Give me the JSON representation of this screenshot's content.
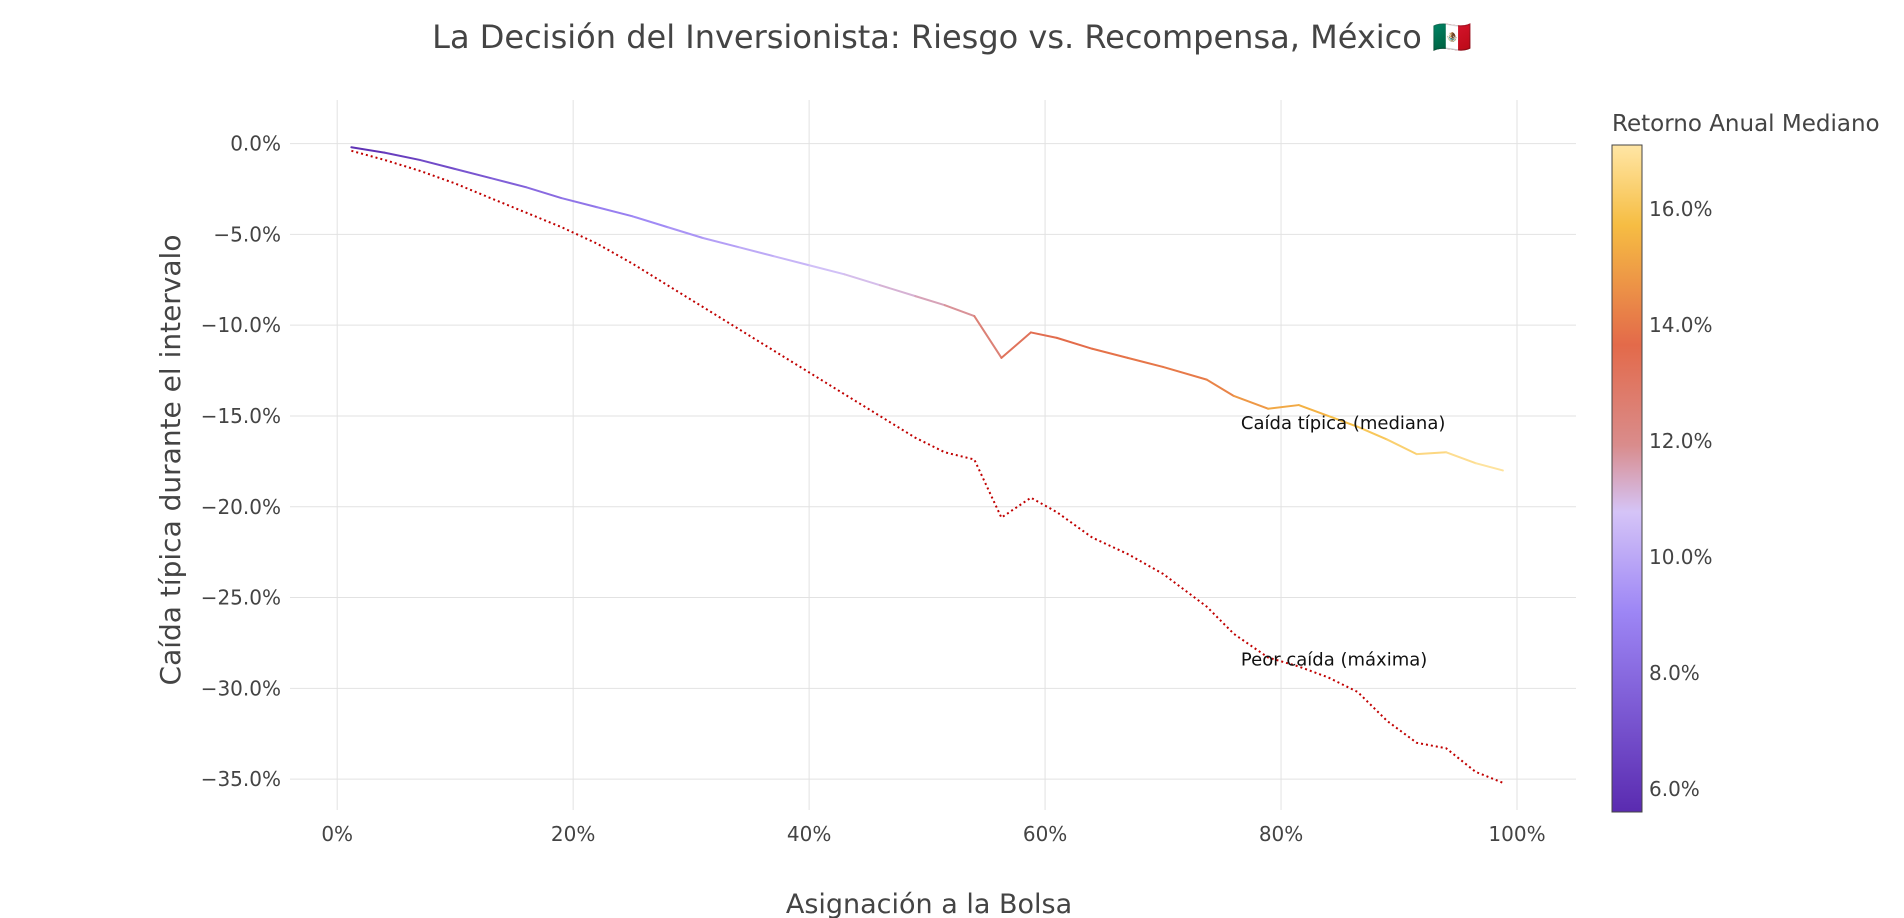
{
  "chart_data": {
    "type": "line",
    "title": "La Decisión del Inversionista: Riesgo vs. Recompensa, México 🇲🇽",
    "xlabel": "Asignación a la Bolsa",
    "ylabel": "Caída típica durante el intervalo",
    "xlim": [
      -0.04,
      1.05
    ],
    "ylim": [
      -36.7,
      2.4
    ],
    "x_ticks": [
      {
        "value": 0,
        "label": "0%"
      },
      {
        "value": 0.2,
        "label": "20%"
      },
      {
        "value": 0.4,
        "label": "40%"
      },
      {
        "value": 0.6,
        "label": "60%"
      },
      {
        "value": 0.8,
        "label": "80%"
      },
      {
        "value": 1.0,
        "label": "100%"
      }
    ],
    "y_ticks": [
      {
        "value": 0,
        "label": "0.0%"
      },
      {
        "value": -5,
        "label": "−5.0%"
      },
      {
        "value": -10,
        "label": "−10.0%"
      },
      {
        "value": -15,
        "label": "−15.0%"
      },
      {
        "value": -20,
        "label": "−20.0%"
      },
      {
        "value": -25,
        "label": "−25.0%"
      },
      {
        "value": -30,
        "label": "−30.0%"
      },
      {
        "value": -35,
        "label": "−35.0%"
      }
    ],
    "grid": true,
    "series": [
      {
        "key": "median",
        "style": "solid-colorscale",
        "x": [
          0.012,
          0.04,
          0.07,
          0.1,
          0.13,
          0.16,
          0.19,
          0.22,
          0.25,
          0.28,
          0.31,
          0.34,
          0.37,
          0.4,
          0.43,
          0.46,
          0.49,
          0.515,
          0.54,
          0.563,
          0.588,
          0.61,
          0.64,
          0.67,
          0.7,
          0.737,
          0.76,
          0.789,
          0.815,
          0.84,
          0.865,
          0.89,
          0.915,
          0.94,
          0.965,
          0.988
        ],
        "y": [
          -0.2,
          -0.5,
          -0.9,
          -1.4,
          -1.9,
          -2.4,
          -3.0,
          -3.5,
          -4.0,
          -4.6,
          -5.2,
          -5.7,
          -6.2,
          -6.7,
          -7.2,
          -7.8,
          -8.4,
          -8.9,
          -9.5,
          -11.8,
          -10.4,
          -10.7,
          -11.3,
          -11.8,
          -12.3,
          -13.0,
          -13.9,
          -14.6,
          -14.4,
          -15.0,
          -15.6,
          -16.3,
          -17.1,
          -17.0,
          -17.6,
          -18.0
        ],
        "returns": [
          5.6,
          6.1,
          6.6,
          7.0,
          7.4,
          7.8,
          8.2,
          8.6,
          9.0,
          9.3,
          9.6,
          9.9,
          10.2,
          10.5,
          10.8,
          11.0,
          11.3,
          11.6,
          12.0,
          13.0,
          13.4,
          13.6,
          13.8,
          13.9,
          14.0,
          14.1,
          14.5,
          15.1,
          15.3,
          15.6,
          15.9,
          16.2,
          16.5,
          16.7,
          16.9,
          17.1
        ]
      },
      {
        "key": "max",
        "style": "dotted",
        "color": "#c00000",
        "x": [
          0.012,
          0.04,
          0.07,
          0.1,
          0.13,
          0.16,
          0.19,
          0.22,
          0.25,
          0.28,
          0.31,
          0.34,
          0.37,
          0.4,
          0.43,
          0.46,
          0.49,
          0.515,
          0.54,
          0.563,
          0.588,
          0.61,
          0.64,
          0.67,
          0.7,
          0.737,
          0.76,
          0.789,
          0.815,
          0.84,
          0.865,
          0.89,
          0.915,
          0.94,
          0.965,
          0.988
        ],
        "y": [
          -0.4,
          -0.9,
          -1.5,
          -2.2,
          -3.0,
          -3.8,
          -4.6,
          -5.5,
          -6.6,
          -7.8,
          -9.0,
          -10.2,
          -11.4,
          -12.6,
          -13.8,
          -15.0,
          -16.2,
          -17.0,
          -17.4,
          -20.6,
          -19.5,
          -20.3,
          -21.7,
          -22.6,
          -23.7,
          -25.5,
          -27.0,
          -28.3,
          -28.8,
          -29.4,
          -30.2,
          -31.8,
          -33.0,
          -33.3,
          -34.6,
          -35.2
        ]
      }
    ],
    "annotations": [
      {
        "text": "Caída típica (mediana)",
        "x": 0.766,
        "y": -15.4
      },
      {
        "text": "Peor caída (máxima)",
        "x": 0.766,
        "y": -28.4
      }
    ],
    "colorbar": {
      "title": "Retorno Anual Mediano",
      "range": [
        5.6,
        17.1
      ],
      "ticks": [
        {
          "value": 6,
          "label": "6.0%"
        },
        {
          "value": 8,
          "label": "8.0%"
        },
        {
          "value": 10,
          "label": "10.0%"
        },
        {
          "value": 12,
          "label": "12.0%"
        },
        {
          "value": 14,
          "label": "14.0%"
        },
        {
          "value": 16,
          "label": "16.0%"
        }
      ],
      "colorscale": [
        {
          "pos": 0.0,
          "color": "#5a2bb0"
        },
        {
          "pos": 0.3,
          "color": "#9d86f5"
        },
        {
          "pos": 0.45,
          "color": "#d5c4f7"
        },
        {
          "pos": 0.55,
          "color": "#d98c8c"
        },
        {
          "pos": 0.7,
          "color": "#e36a4a"
        },
        {
          "pos": 0.88,
          "color": "#f6bd43"
        },
        {
          "pos": 1.0,
          "color": "#ffe6a5"
        }
      ]
    }
  }
}
